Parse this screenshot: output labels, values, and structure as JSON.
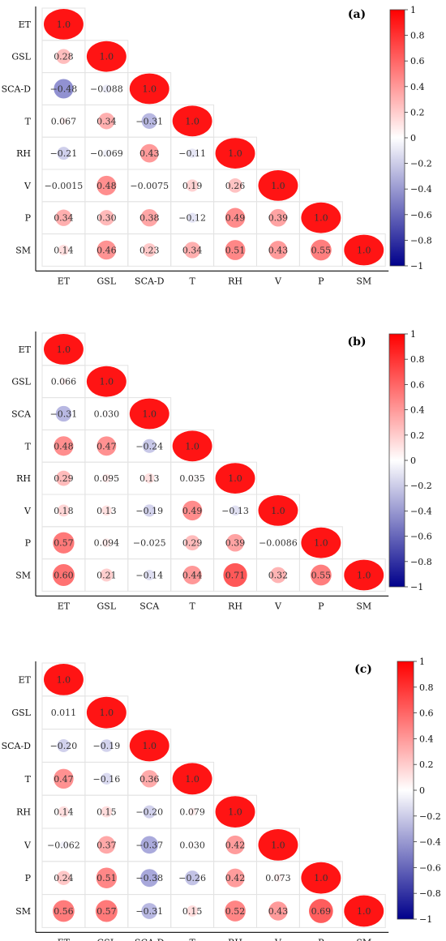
{
  "colorbar": {
    "ticks": [
      "1",
      "0.8",
      "0.6",
      "0.4",
      "0.2",
      "0",
      "−0.2",
      "−0.4",
      "−0.6",
      "−0.8",
      "−1"
    ],
    "colors": {
      "negative": "#0a0a9c",
      "neutral": "#ffffff",
      "positive": "#ff1414"
    }
  },
  "chart_data": [
    {
      "type": "heatmap",
      "panel_label": "(a)",
      "variables": [
        "ET",
        "GSL",
        "SCA-D",
        "T",
        "RH",
        "V",
        "P",
        "SM"
      ],
      "value_labels": [
        [
          "1.0"
        ],
        [
          "0.28",
          "1.0"
        ],
        [
          "−0.48",
          "−0.088",
          "1.0"
        ],
        [
          "0.067",
          "0.34",
          "−0.31",
          "1.0"
        ],
        [
          "−0.21",
          "−0.069",
          "0.43",
          "−0.11",
          "1.0"
        ],
        [
          "−0.0015",
          "0.48",
          "−0.0075",
          "0.19",
          "0.26",
          "1.0"
        ],
        [
          "0.34",
          "0.30",
          "0.38",
          "−0.12",
          "0.49",
          "0.39",
          "1.0"
        ],
        [
          "0.14",
          "0.46",
          "0.23",
          "0.34",
          "0.51",
          "0.43",
          "0.55",
          "1.0"
        ]
      ],
      "values": [
        [
          1.0
        ],
        [
          0.28,
          1.0
        ],
        [
          -0.48,
          -0.088,
          1.0
        ],
        [
          0.067,
          0.34,
          -0.31,
          1.0
        ],
        [
          -0.21,
          -0.069,
          0.43,
          -0.11,
          1.0
        ],
        [
          -0.0015,
          0.48,
          -0.0075,
          0.19,
          0.26,
          1.0
        ],
        [
          0.34,
          0.3,
          0.38,
          -0.12,
          0.49,
          0.39,
          1.0
        ],
        [
          0.14,
          0.46,
          0.23,
          0.34,
          0.51,
          0.43,
          0.55,
          1.0
        ]
      ],
      "color_range": [
        -1,
        1
      ]
    },
    {
      "type": "heatmap",
      "panel_label": "(b)",
      "variables": [
        "ET",
        "GSL",
        "SCA",
        "T",
        "RH",
        "V",
        "P",
        "SM"
      ],
      "value_labels": [
        [
          "1.0"
        ],
        [
          "0.066",
          "1.0"
        ],
        [
          "−0.31",
          "0.030",
          "1.0"
        ],
        [
          "0.48",
          "0.47",
          "−0.24",
          "1.0"
        ],
        [
          "0.29",
          "0.095",
          "0.13",
          "0.035",
          "1.0"
        ],
        [
          "0.18",
          "0.13",
          "−0.19",
          "0.49",
          "−0.13",
          "1.0"
        ],
        [
          "0.57",
          "0.094",
          "−0.025",
          "0.29",
          "0.39",
          "−0.0086",
          "1.0"
        ],
        [
          "0.60",
          "0.21",
          "−0.14",
          "0.44",
          "0.71",
          "0.32",
          "0.55",
          "1.0"
        ]
      ],
      "values": [
        [
          1.0
        ],
        [
          0.066,
          1.0
        ],
        [
          -0.31,
          0.03,
          1.0
        ],
        [
          0.48,
          0.47,
          -0.24,
          1.0
        ],
        [
          0.29,
          0.095,
          0.13,
          0.035,
          1.0
        ],
        [
          0.18,
          0.13,
          -0.19,
          0.49,
          -0.13,
          1.0
        ],
        [
          0.57,
          0.094,
          -0.025,
          0.29,
          0.39,
          -0.0086,
          1.0
        ],
        [
          0.6,
          0.21,
          -0.14,
          0.44,
          0.71,
          0.32,
          0.55,
          1.0
        ]
      ],
      "color_range": [
        -1,
        1
      ]
    },
    {
      "type": "heatmap",
      "panel_label": "(c)",
      "variables": [
        "ET",
        "GSL",
        "SCA-D",
        "T",
        "RH",
        "V",
        "P",
        "SM"
      ],
      "value_labels": [
        [
          "1.0"
        ],
        [
          "0.011",
          "1.0"
        ],
        [
          "−0.20",
          "−0.19",
          "1.0"
        ],
        [
          "0.47",
          "−0.16",
          "0.36",
          "1.0"
        ],
        [
          "0.14",
          "0.15",
          "−0.20",
          "0.079",
          "1.0"
        ],
        [
          "−0.062",
          "0.37",
          "−0.37",
          "0.030",
          "0.42",
          "1.0"
        ],
        [
          "0.24",
          "0.51",
          "−0.38",
          "−0.26",
          "0.42",
          "0.073",
          "1.0"
        ],
        [
          "0.56",
          "0.57",
          "−0.31",
          "0.15",
          "0.52",
          "0.43",
          "0.69",
          "1.0"
        ]
      ],
      "values": [
        [
          1.0
        ],
        [
          0.011,
          1.0
        ],
        [
          -0.2,
          -0.19,
          1.0
        ],
        [
          0.47,
          -0.16,
          0.36,
          1.0
        ],
        [
          0.14,
          0.15,
          -0.2,
          0.079,
          1.0
        ],
        [
          -0.062,
          0.37,
          -0.37,
          0.03,
          0.42,
          1.0
        ],
        [
          0.24,
          0.51,
          -0.38,
          -0.26,
          0.42,
          0.073,
          1.0
        ],
        [
          0.56,
          0.57,
          -0.31,
          0.15,
          0.52,
          0.43,
          0.69,
          1.0
        ]
      ],
      "color_range": [
        -1,
        1
      ]
    }
  ]
}
